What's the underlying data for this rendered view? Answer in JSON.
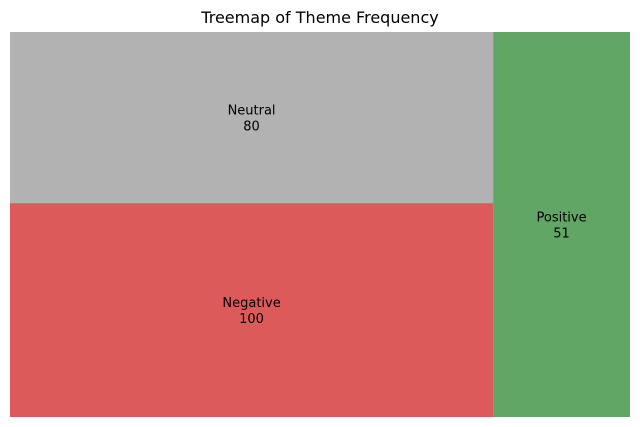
{
  "chart_data": {
    "type": "treemap",
    "title": "Treemap of Theme Frequency",
    "items": [
      {
        "label": "Negative",
        "value": 100,
        "color": "#dc5a5a"
      },
      {
        "label": "Neutral",
        "value": 80,
        "color": "#b2b2b2"
      },
      {
        "label": "Positive",
        "value": 51,
        "color": "#61a664"
      }
    ]
  }
}
